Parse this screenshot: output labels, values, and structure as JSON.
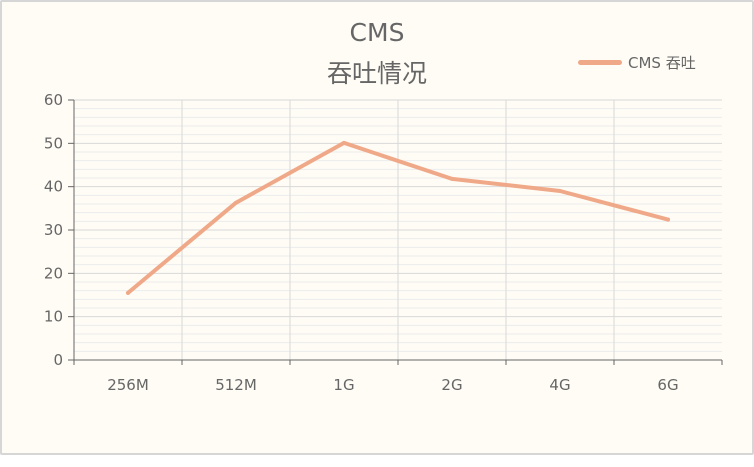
{
  "chart_data": {
    "type": "line",
    "title": "CMS",
    "subtitle": "吞吐情况",
    "categories": [
      "256M",
      "512M",
      "1G",
      "2G",
      "4G",
      "6G"
    ],
    "series": [
      {
        "name": "CMS 吞吐",
        "values": [
          15.5,
          36.3,
          50.1,
          41.8,
          39.0,
          32.4
        ],
        "color": "#f0a988"
      }
    ],
    "ylim": [
      0,
      60
    ],
    "yticks": [
      0,
      10,
      20,
      30,
      40,
      50,
      60
    ],
    "grid": true,
    "legend": "top-right"
  },
  "colors": {
    "background": "#fffcf5",
    "border": "#d6d6d6",
    "grid_major": "#d9d9d9",
    "grid_minor": "#ececec",
    "axis": "#666666"
  }
}
